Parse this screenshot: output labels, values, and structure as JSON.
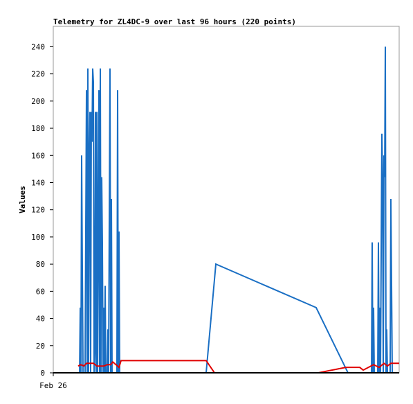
{
  "chart_data": {
    "type": "line",
    "title": "Telemetry for ZL4DC-9 over last 96 hours (220 points)",
    "y_label": "Values",
    "xlim": [
      0,
      96
    ],
    "xticks": [
      {
        "value": 0,
        "label": "Feb 26"
      }
    ],
    "ylim": [
      0,
      255
    ],
    "yticks": [
      0,
      20,
      40,
      60,
      80,
      100,
      120,
      140,
      160,
      180,
      200,
      220,
      240
    ],
    "series": [
      {
        "color": "#1a6fc4",
        "x": [
          7.3,
          7.49,
          7.68,
          7.87,
          8.06,
          8.26,
          8.83,
          9.02,
          9.22,
          9.41,
          9.6,
          9.79,
          9.98,
          10.18,
          10.37,
          10.56,
          10.75,
          10.94,
          11.14,
          11.33,
          11.52,
          11.71,
          11.9,
          12.1,
          12.29,
          12.67,
          12.86,
          13.06,
          13.25,
          13.44,
          13.63,
          13.82,
          14.02,
          14.21,
          14.4,
          14.59,
          14.98,
          15.17,
          15.36,
          15.55,
          15.74,
          15.94,
          16.13,
          16.32,
          16.51,
          17.66,
          17.86,
          18.05,
          18.24,
          18.43,
          42.43,
          45.12,
          72.96,
          81.79,
          88.32,
          88.51,
          88.7,
          88.9,
          89.09,
          90.05,
          90.24,
          90.43,
          90.62,
          90.82,
          91.2,
          91.39,
          91.58,
          91.78,
          91.97,
          92.16,
          92.35,
          92.54,
          92.74,
          93.5,
          93.7,
          93.89,
          94.08
        ],
        "values": [
          0,
          48,
          0,
          160,
          80,
          0,
          0,
          104,
          208,
          0,
          224,
          0,
          160,
          192,
          0,
          192,
          170,
          224,
          214,
          0,
          16,
          192,
          0,
          192,
          0,
          208,
          0,
          224,
          0,
          144,
          96,
          0,
          48,
          0,
          64,
          0,
          0,
          32,
          0,
          112,
          224,
          0,
          128,
          0,
          0,
          0,
          208,
          0,
          104,
          0,
          0,
          80,
          48,
          0,
          0,
          96,
          0,
          48,
          0,
          0,
          96,
          0,
          48,
          0,
          176,
          144,
          0,
          160,
          144,
          240,
          0,
          32,
          0,
          0,
          128,
          64,
          0
        ]
      },
      {
        "color": "#e00000",
        "x": [
          6.91,
          7.68,
          8.45,
          9.22,
          11.14,
          12.1,
          14.02,
          14.98,
          15.94,
          16.51,
          17.86,
          18.24,
          18.82,
          42.43,
          44.74,
          73.54,
          81.22,
          85.06,
          86.02,
          88.9,
          90.43,
          91.78,
          92.74,
          93.7,
          96
        ],
        "values": [
          5,
          6,
          5,
          7,
          7,
          5,
          5,
          6,
          6,
          8,
          5,
          4,
          9,
          9,
          0,
          0,
          4,
          4,
          2,
          6,
          4,
          7,
          5,
          7,
          7
        ]
      }
    ]
  }
}
